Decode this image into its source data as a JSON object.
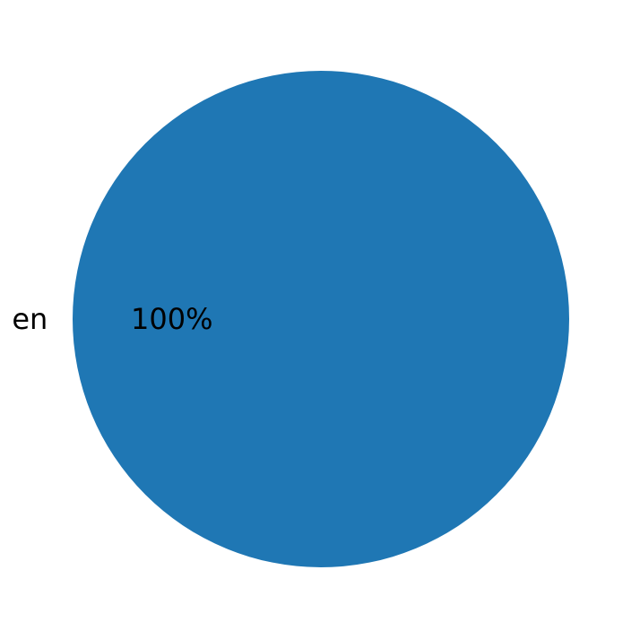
{
  "chart_data": {
    "type": "pie",
    "categories": [
      "en"
    ],
    "values": [
      100
    ],
    "value_labels": [
      "100%"
    ],
    "colors": [
      "#1f77b4"
    ],
    "title": "",
    "legend": "none"
  }
}
